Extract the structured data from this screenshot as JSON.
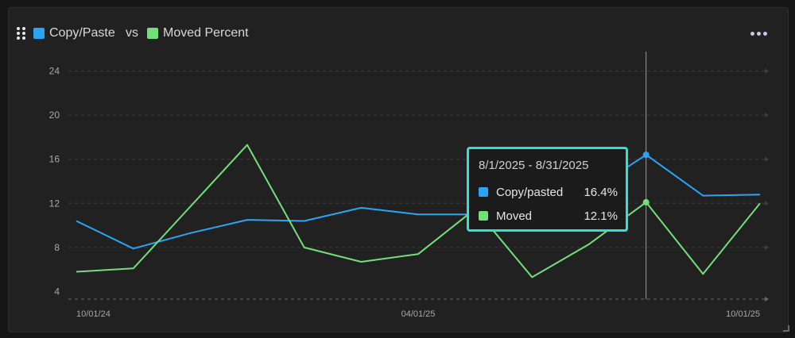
{
  "header": {
    "series_a_label": "Copy/Paste",
    "vs_label": "vs",
    "series_b_label": "Moved Percent"
  },
  "colors": {
    "series_a": "#2aa5f5",
    "series_b": "#72e07a",
    "tooltip_border": "#2ee3d0"
  },
  "icons": {
    "drag": "drag-handle-icon",
    "menu": "more-options-icon",
    "resize": "resize-corner-icon"
  },
  "tooltip": {
    "title": "8/1/2025 - 8/31/2025",
    "rows": [
      {
        "name": "Copy/pasted",
        "value": "16.4%"
      },
      {
        "name": "Moved",
        "value": "12.1%"
      }
    ]
  },
  "chart_data": {
    "type": "line",
    "x": [
      "2024-10",
      "2024-11",
      "2024-12",
      "2025-01",
      "2025-02",
      "2025-03",
      "2025-04",
      "2025-05",
      "2025-06",
      "2025-07",
      "2025-08",
      "2025-09",
      "2025-10"
    ],
    "x_tick_labels": [
      "10/01/24",
      "04/01/25",
      "10/01/25"
    ],
    "y_ticks": [
      4,
      8,
      12,
      16,
      20,
      24
    ],
    "ylim": [
      4,
      24.5
    ],
    "grid": true,
    "highlighted_x": "2025-08",
    "series": [
      {
        "name": "Copy/Paste",
        "values": [
          10.4,
          7.9,
          9.3,
          10.5,
          10.4,
          11.6,
          11.0,
          11.0,
          11.5,
          13.0,
          16.4,
          12.7,
          12.8
        ]
      },
      {
        "name": "Moved Percent",
        "values": [
          5.8,
          6.1,
          11.7,
          17.3,
          8.0,
          6.7,
          7.4,
          11.5,
          5.3,
          8.3,
          12.1,
          5.6,
          12.0
        ]
      }
    ]
  }
}
